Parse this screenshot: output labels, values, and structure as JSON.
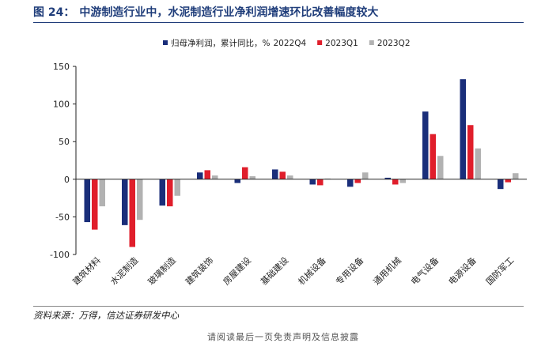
{
  "header": {
    "figure_label": "图 24：",
    "figure_title": "中游制造行业中，水泥制造行业净利润增速环比改善幅度较大"
  },
  "source_note": "资料来源：万得，信达证券研发中心",
  "footer_fragment": "请阅读最后一页免责声明及信息披露",
  "colors": {
    "series_2022Q4": "#1a2e7a",
    "series_2023Q1": "#e01e2b",
    "series_2023Q2": "#b2b2b2"
  },
  "chart_data": {
    "type": "bar",
    "title": "",
    "xlabel": "",
    "ylabel": "",
    "ylim": [
      -100,
      150
    ],
    "yticks": [
      -100,
      -50,
      0,
      50,
      100,
      150
    ],
    "grid": false,
    "legend_position": "top-center",
    "legend_prefix": "归母净利润，累计同比，%",
    "categories": [
      "建筑材料",
      "水泥制造",
      "玻璃制造",
      "建筑装饰",
      "房屋建设",
      "基础建设",
      "机械设备",
      "专用设备",
      "通用机械",
      "电气设备",
      "电源设备",
      "国防军工"
    ],
    "series": [
      {
        "name": "2022Q4",
        "color": "#1a2e7a",
        "values": [
          -57,
          -61,
          -35,
          9,
          -5,
          13,
          -7,
          -10,
          2,
          90,
          133,
          -13
        ]
      },
      {
        "name": "2023Q1",
        "color": "#e01e2b",
        "values": [
          -67,
          -90,
          -36,
          12,
          16,
          10,
          -8,
          -5,
          -7,
          60,
          72,
          -4
        ]
      },
      {
        "name": "2023Q2",
        "color": "#b2b2b2",
        "values": [
          -36,
          -54,
          -22,
          5,
          4,
          5,
          1,
          9,
          -5,
          31,
          41,
          8
        ]
      }
    ]
  }
}
